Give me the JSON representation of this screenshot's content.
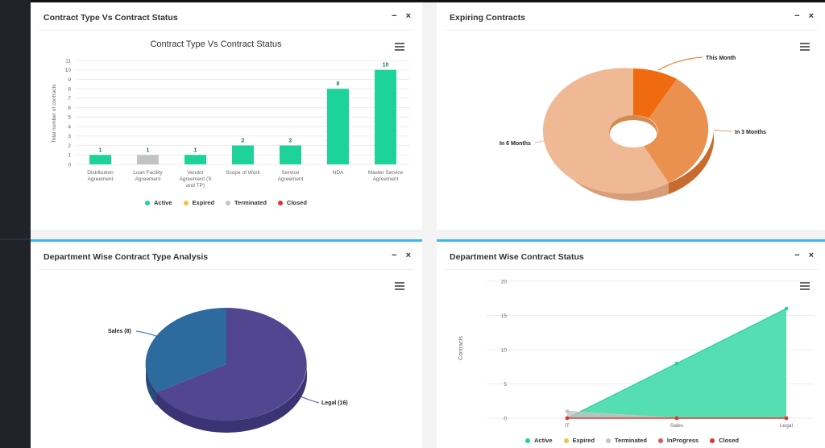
{
  "panels": {
    "contract_type_status": {
      "title": "Contract Type Vs Contract Status",
      "chart_title": "Contract Type Vs Contract Status",
      "ylabel": "Total number of contracts",
      "minimize_label": "−",
      "close_label": "×"
    },
    "expiring": {
      "title": "Expiring Contracts",
      "minimize_label": "−",
      "close_label": "×"
    },
    "dept_type": {
      "title": "Department Wise Contract Type Analysis",
      "minimize_label": "−",
      "close_label": "×"
    },
    "dept_status": {
      "title": "Department Wise Contract Status",
      "ylabel": "Contracts",
      "minimize_label": "−",
      "close_label": "×"
    }
  },
  "legend_bar": [
    {
      "label": "Active",
      "color": "#1dd39a"
    },
    {
      "label": "Expired",
      "color": "#f4c542"
    },
    {
      "label": "Terminated",
      "color": "#c3c3c3"
    },
    {
      "label": "Closed",
      "color": "#e03131"
    }
  ],
  "legend_line": [
    {
      "label": "Active",
      "color": "#1dd39a"
    },
    {
      "label": "Expired",
      "color": "#f4c542"
    },
    {
      "label": "Terminated",
      "color": "#c3c3c3"
    },
    {
      "label": "InProgress",
      "color": "#e05252"
    },
    {
      "label": "Closed",
      "color": "#e03131"
    }
  ],
  "chart_data": [
    {
      "type": "bar",
      "title": "Contract Type Vs Contract Status",
      "ylabel": "Total number of contracts",
      "ylim": [
        0,
        11
      ],
      "yticks": [
        "0",
        "1",
        "2",
        "3",
        "4",
        "5",
        "6",
        "7",
        "8",
        "9",
        "10",
        "11"
      ],
      "categories": [
        [
          "Distribution",
          "Agreement"
        ],
        [
          "Loan Facility",
          "Agreement"
        ],
        [
          "Vendor",
          "Agreement (S",
          "and TP)"
        ],
        [
          "Scope of Work"
        ],
        [
          "Service",
          "Agreement"
        ],
        [
          "NDA"
        ],
        [
          "Master Service",
          "Agreement"
        ]
      ],
      "values": [
        1,
        1,
        1,
        2,
        2,
        8,
        10
      ],
      "colors": [
        "#1dd39a",
        "#c3c3c3",
        "#1dd39a",
        "#1dd39a",
        "#1dd39a",
        "#1dd39a",
        "#1dd39a"
      ]
    },
    {
      "type": "pie",
      "donut": true,
      "slices": [
        {
          "label": "This Month",
          "value": 1,
          "color": "#f06a0f"
        },
        {
          "label": "In 3 Months",
          "value": 3.5,
          "color": "#ea9150"
        },
        {
          "label": "In 6 Months",
          "value": 7.5,
          "color": "#efb995"
        }
      ]
    },
    {
      "type": "pie",
      "slices": [
        {
          "label": "Sales (8)",
          "value": 8,
          "color": "#2d6a9e"
        },
        {
          "label": "Legal (16)",
          "value": 16,
          "color": "#524690"
        }
      ]
    },
    {
      "type": "area",
      "ylabel": "Contracts",
      "ylim": [
        0,
        20
      ],
      "yticks": [
        "0",
        "5",
        "10",
        "15",
        "20"
      ],
      "categories": [
        "IT",
        "Sales",
        "Legal"
      ],
      "series": [
        {
          "name": "Active",
          "values": [
            0,
            8,
            16
          ],
          "color": "#1dd39a"
        },
        {
          "name": "Terminated",
          "values": [
            1,
            0,
            0
          ],
          "color": "#c3c3c3"
        },
        {
          "name": "InProgress",
          "values": [
            0,
            0,
            0
          ],
          "color": "#e05252"
        },
        {
          "name": "Closed",
          "values": [
            0,
            0,
            0
          ],
          "color": "#e03131"
        }
      ]
    }
  ]
}
